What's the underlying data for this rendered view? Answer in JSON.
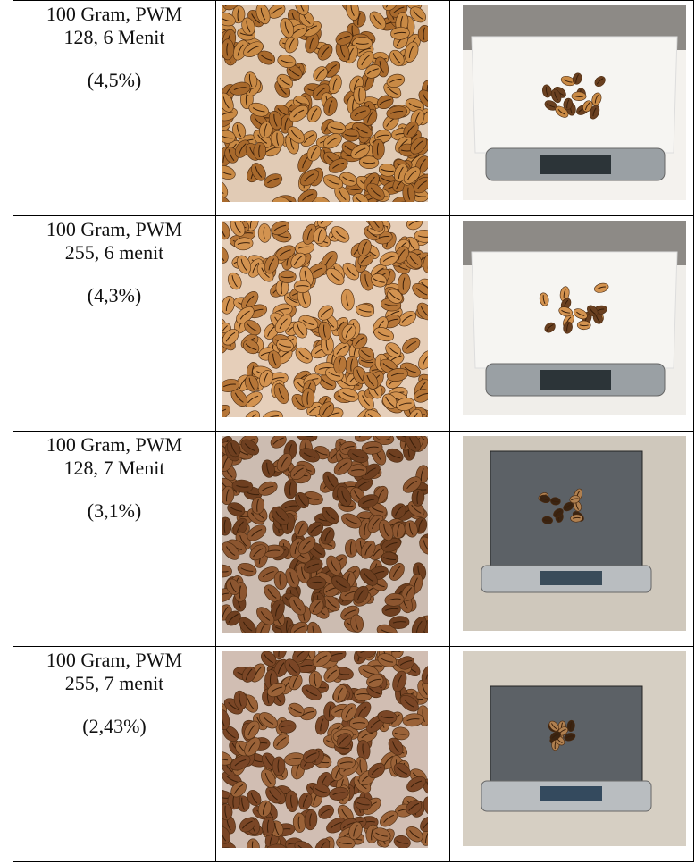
{
  "table": {
    "rows": [
      {
        "lines": [
          "100 Gram, PWM",
          "128, 6 Menit"
        ],
        "percentage": "(4,5%)"
      },
      {
        "lines": [
          "100 Gram, PWM",
          "255, 6 menit"
        ],
        "percentage": "(4,3%)"
      },
      {
        "lines": [
          "100 Gram, PWM",
          "128, 7 Menit"
        ],
        "percentage": "(3,1%)"
      },
      {
        "lines": [
          "100 Gram, PWM",
          "255, 7 menit"
        ],
        "percentage": "(2,43%)"
      }
    ]
  }
}
